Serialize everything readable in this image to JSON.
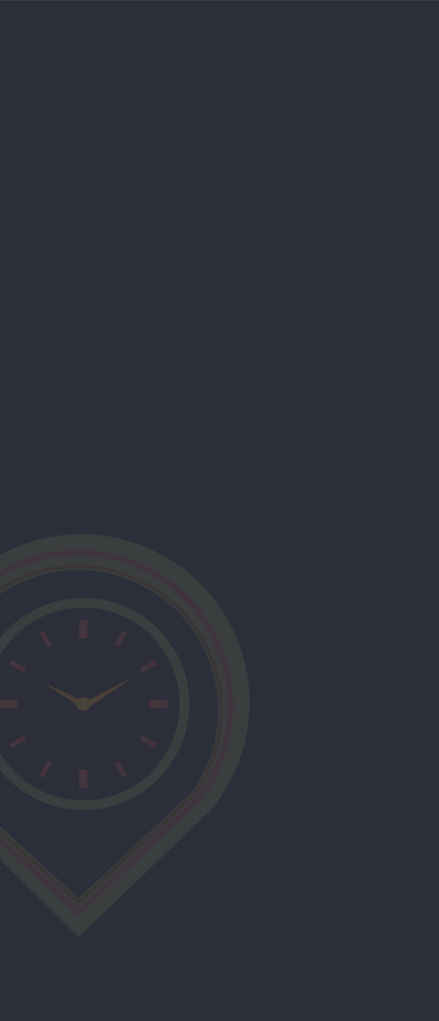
{
  "screen": {
    "background_color": "#2b2f3a"
  },
  "watermark": {
    "icon": "location-clock-icon",
    "colors": {
      "outer_ring": "#3b3e3e",
      "middle_ring": "#3f353e",
      "inner_ring": "#3a3536",
      "clock_ring": "#3a3e3f",
      "clock_face": "#2c2f39",
      "hour_marks": "#44343d",
      "hands": "#4b4039",
      "center_dot": "#48423d"
    }
  }
}
